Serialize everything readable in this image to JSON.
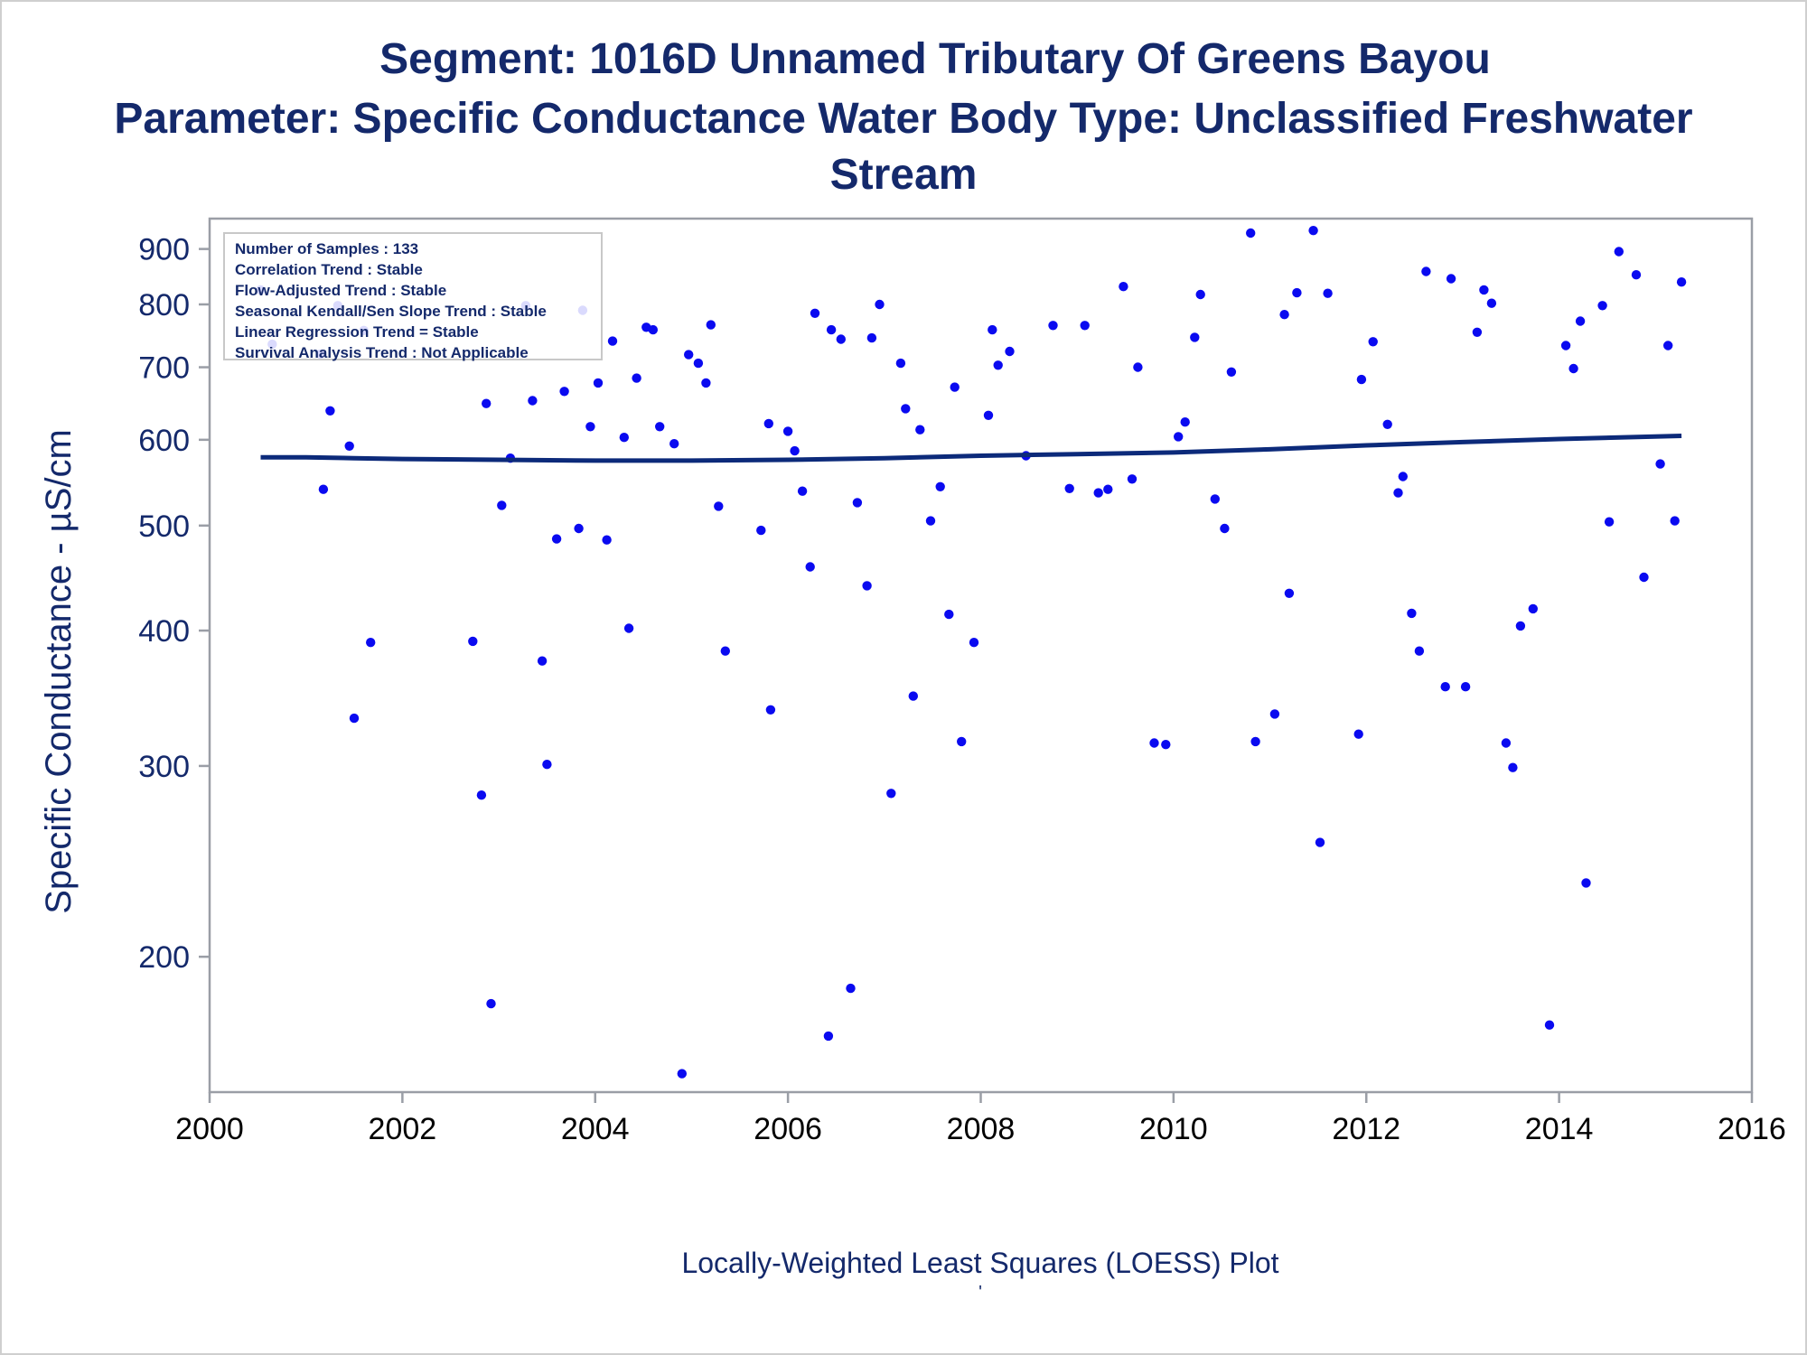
{
  "title_lines": [
    "Segment: 1016D  Unnamed Tributary Of Greens Bayou",
    "Parameter: Specific Conductance   Water Body Type: Unclassified Freshwater",
    "Stream"
  ],
  "footnotes": [
    "Locally-Weighted Least Squares (LOESS) Plot",
    "'"
  ],
  "colors": {
    "text": "#14296b",
    "points": "#0a0af0",
    "loess": "#0c2a7a",
    "axis": "#9a9ea6"
  },
  "chart_data": {
    "type": "scatter",
    "ylabel": "Specific Conductance -  µS/cm",
    "xlabel": "",
    "y_scale": "log",
    "xlim": [
      2000,
      2016
    ],
    "ylim": [
      150,
      960
    ],
    "x_ticks": [
      2000,
      2002,
      2004,
      2006,
      2008,
      2010,
      2012,
      2014,
      2016
    ],
    "y_ticks": [
      200,
      300,
      400,
      500,
      600,
      700,
      800,
      900
    ],
    "grid": false,
    "inset_stats": [
      "Number of Samples : 133",
      "Correlation Trend : Stable",
      "Flow-Adjusted Trend : Stable",
      "Seasonal Kendall/Sen Slope Trend : Stable",
      "Linear Regression Trend = Stable",
      "Survival Analysis Trend : Not Applicable"
    ],
    "inset_position": "top-left",
    "points": [
      [
        2000.53,
        825
      ],
      [
        2000.65,
        735
      ],
      [
        2001.15,
        720
      ],
      [
        2001.18,
        540
      ],
      [
        2001.25,
        638
      ],
      [
        2001.33,
        798
      ],
      [
        2001.45,
        592
      ],
      [
        2001.5,
        332
      ],
      [
        2001.6,
        757
      ],
      [
        2001.67,
        390
      ],
      [
        2002.73,
        391
      ],
      [
        2002.82,
        282
      ],
      [
        2002.87,
        648
      ],
      [
        2002.92,
        181
      ],
      [
        2003.03,
        522
      ],
      [
        2003.12,
        577
      ],
      [
        2003.28,
        798
      ],
      [
        2003.35,
        652
      ],
      [
        2003.45,
        375
      ],
      [
        2003.5,
        301
      ],
      [
        2003.6,
        486
      ],
      [
        2003.68,
        665
      ],
      [
        2003.83,
        497
      ],
      [
        2003.87,
        790
      ],
      [
        2003.95,
        617
      ],
      [
        2004.03,
        677
      ],
      [
        2004.12,
        485
      ],
      [
        2004.18,
        740
      ],
      [
        2004.3,
        603
      ],
      [
        2004.35,
        402
      ],
      [
        2004.43,
        684
      ],
      [
        2004.53,
        762
      ],
      [
        2004.6,
        758
      ],
      [
        2004.67,
        617
      ],
      [
        2004.82,
        595
      ],
      [
        2004.9,
        156
      ],
      [
        2004.97,
        719
      ],
      [
        2005.07,
        706
      ],
      [
        2005.15,
        677
      ],
      [
        2005.2,
        766
      ],
      [
        2005.28,
        521
      ],
      [
        2005.35,
        383
      ],
      [
        2005.72,
        495
      ],
      [
        2005.8,
        621
      ],
      [
        2005.82,
        338
      ],
      [
        2006.0,
        611
      ],
      [
        2006.07,
        586
      ],
      [
        2006.15,
        538
      ],
      [
        2006.23,
        458
      ],
      [
        2006.28,
        785
      ],
      [
        2006.42,
        169
      ],
      [
        2006.45,
        758
      ],
      [
        2006.55,
        743
      ],
      [
        2006.65,
        187
      ],
      [
        2006.72,
        525
      ],
      [
        2006.82,
        440
      ],
      [
        2006.87,
        745
      ],
      [
        2006.95,
        800
      ],
      [
        2007.07,
        283
      ],
      [
        2007.17,
        706
      ],
      [
        2007.22,
        641
      ],
      [
        2007.3,
        348
      ],
      [
        2007.37,
        613
      ],
      [
        2007.48,
        505
      ],
      [
        2007.58,
        543
      ],
      [
        2007.67,
        414
      ],
      [
        2007.73,
        671
      ],
      [
        2007.8,
        316
      ],
      [
        2007.93,
        390
      ],
      [
        2008.08,
        632
      ],
      [
        2008.12,
        758
      ],
      [
        2008.18,
        703
      ],
      [
        2008.3,
        724
      ],
      [
        2008.47,
        580
      ],
      [
        2008.75,
        765
      ],
      [
        2008.92,
        541
      ],
      [
        2009.08,
        765
      ],
      [
        2009.22,
        536
      ],
      [
        2009.32,
        540
      ],
      [
        2009.48,
        831
      ],
      [
        2009.57,
        552
      ],
      [
        2009.63,
        700
      ],
      [
        2009.8,
        315
      ],
      [
        2009.92,
        314
      ],
      [
        2010.05,
        604
      ],
      [
        2010.12,
        623
      ],
      [
        2010.22,
        746
      ],
      [
        2010.28,
        817
      ],
      [
        2010.43,
        529
      ],
      [
        2010.53,
        497
      ],
      [
        2010.6,
        693
      ],
      [
        2010.8,
        931
      ],
      [
        2010.85,
        316
      ],
      [
        2011.05,
        335
      ],
      [
        2011.15,
        783
      ],
      [
        2011.2,
        433
      ],
      [
        2011.28,
        820
      ],
      [
        2011.45,
        936
      ],
      [
        2011.52,
        255
      ],
      [
        2011.6,
        819
      ],
      [
        2011.92,
        321
      ],
      [
        2011.95,
        682
      ],
      [
        2012.07,
        739
      ],
      [
        2012.22,
        620
      ],
      [
        2012.33,
        536
      ],
      [
        2012.38,
        555
      ],
      [
        2012.47,
        415
      ],
      [
        2012.55,
        383
      ],
      [
        2012.62,
        858
      ],
      [
        2012.82,
        355
      ],
      [
        2012.88,
        845
      ],
      [
        2013.03,
        355
      ],
      [
        2013.15,
        754
      ],
      [
        2013.22,
        825
      ],
      [
        2013.3,
        802
      ],
      [
        2013.45,
        315
      ],
      [
        2013.52,
        299
      ],
      [
        2013.6,
        404
      ],
      [
        2013.73,
        419
      ],
      [
        2013.9,
        173
      ],
      [
        2014.07,
        733
      ],
      [
        2014.15,
        698
      ],
      [
        2014.22,
        772
      ],
      [
        2014.28,
        234
      ],
      [
        2014.45,
        798
      ],
      [
        2014.52,
        504
      ],
      [
        2014.62,
        895
      ],
      [
        2014.8,
        852
      ],
      [
        2014.88,
        448
      ],
      [
        2015.05,
        570
      ],
      [
        2015.13,
        733
      ],
      [
        2015.2,
        505
      ],
      [
        2015.27,
        839
      ]
    ],
    "loess_curve": [
      [
        2000.53,
        578
      ],
      [
        2001.0,
        578
      ],
      [
        2001.5,
        577
      ],
      [
        2002.0,
        576
      ],
      [
        2003.0,
        575
      ],
      [
        2004.0,
        574
      ],
      [
        2005.0,
        574
      ],
      [
        2006.0,
        575
      ],
      [
        2007.0,
        577
      ],
      [
        2008.0,
        580
      ],
      [
        2009.0,
        582
      ],
      [
        2010.0,
        584
      ],
      [
        2011.0,
        588
      ],
      [
        2012.0,
        593
      ],
      [
        2013.0,
        597
      ],
      [
        2014.0,
        601
      ],
      [
        2015.27,
        605
      ]
    ]
  }
}
